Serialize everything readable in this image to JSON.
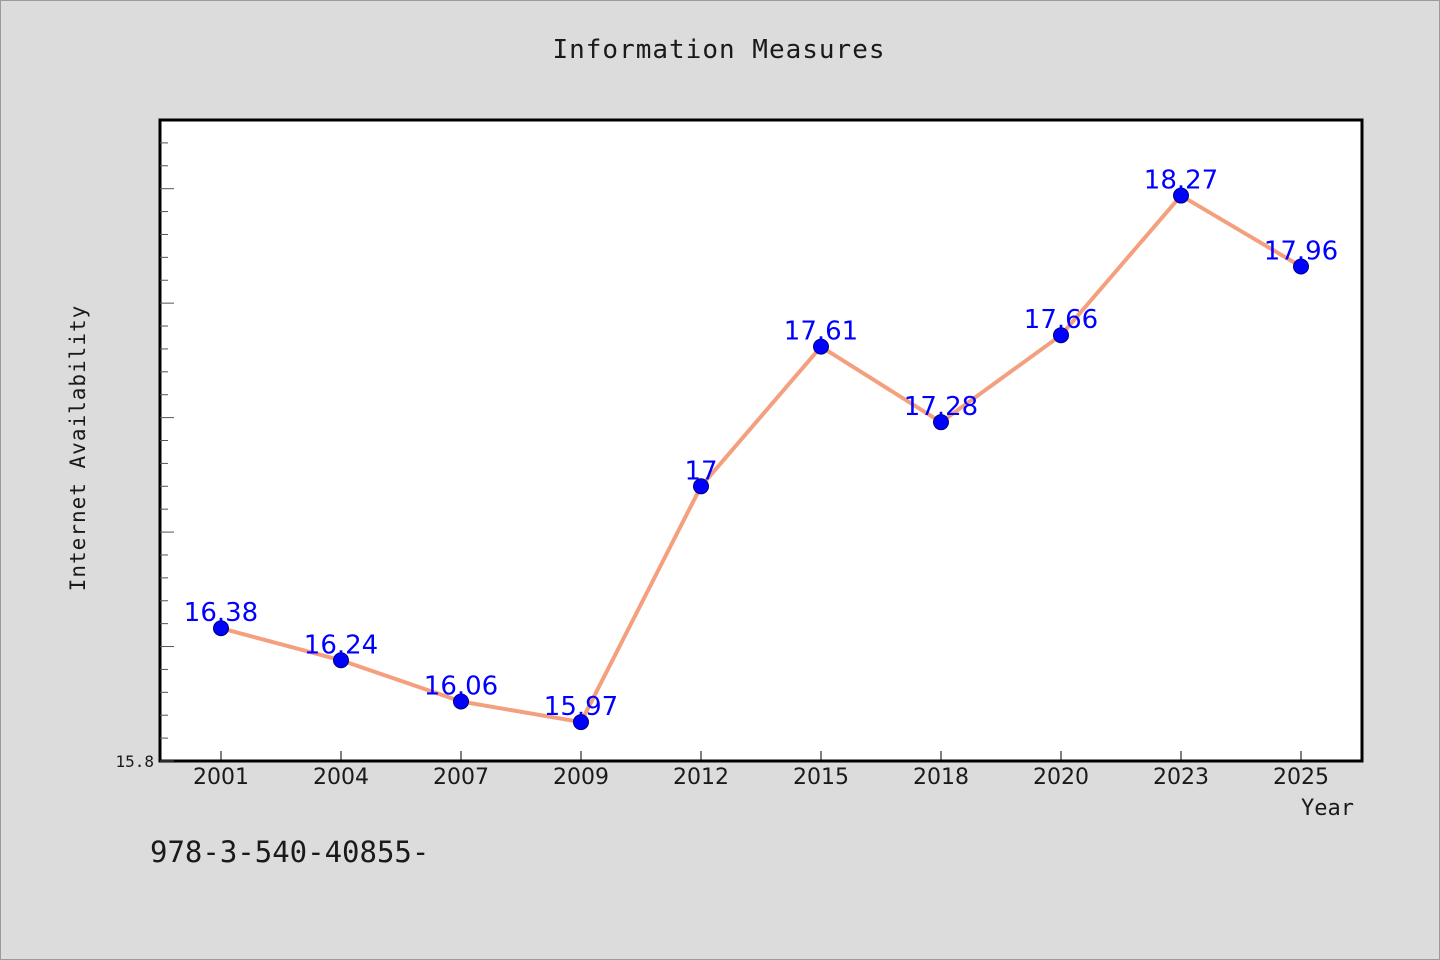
{
  "chart_data": {
    "type": "line",
    "title": "Information Measures",
    "xlabel": "Year",
    "ylabel": "Internet Availability",
    "categories": [
      "2001",
      "2004",
      "2007",
      "2009",
      "2012",
      "2015",
      "2018",
      "2020",
      "2023",
      "2025"
    ],
    "series": [
      {
        "values": [
          16.38,
          16.24,
          16.06,
          15.97,
          17,
          17.61,
          17.28,
          17.66,
          18.27,
          17.96
        ],
        "data_labels": [
          "16.38",
          "16.24",
          "16.06",
          "15.97",
          "17",
          "17.61",
          "17.28",
          "17.66",
          "18.27",
          "17.96"
        ],
        "line_color": "#f4a07f",
        "marker_color": "#0000ff"
      }
    ],
    "ylim": [
      15.8,
      18.6
    ],
    "y_tick_labels": [
      "15.8"
    ],
    "grid": false,
    "legend": "none",
    "background_color": "#dcdcdc",
    "plot_background_color": "#ffffff"
  },
  "footer": {
    "text": "978-3-540-40855-"
  }
}
